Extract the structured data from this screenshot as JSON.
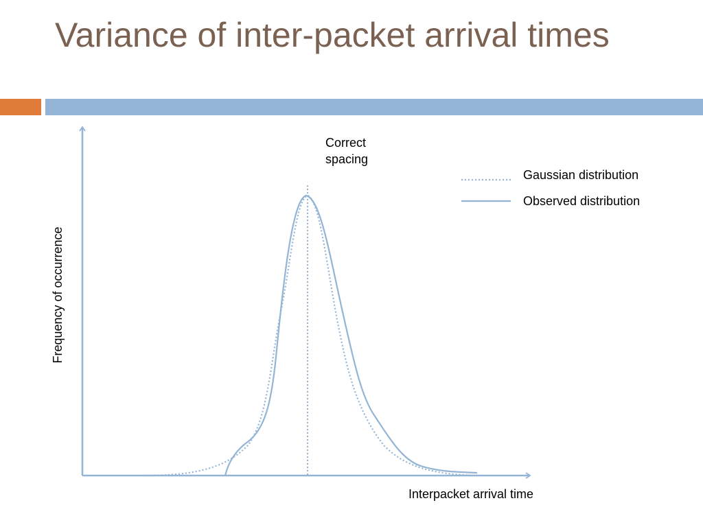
{
  "slide": {
    "title": "Variance of inter-packet arrival times"
  },
  "colors": {
    "title": "#7a6152",
    "accent_bar": "#e07b39",
    "title_rule": "#93b4d4",
    "axis": "#93b4d4",
    "curves": "#93b4d4"
  },
  "diagram": {
    "y_axis_label": "Frequency of occurrence",
    "x_axis_label": "Interpacket arrival time",
    "center_label": [
      "Correct",
      "spacing"
    ],
    "legend": {
      "gaussian": "Gaussian distribution",
      "observed": "Observed distribution"
    }
  }
}
